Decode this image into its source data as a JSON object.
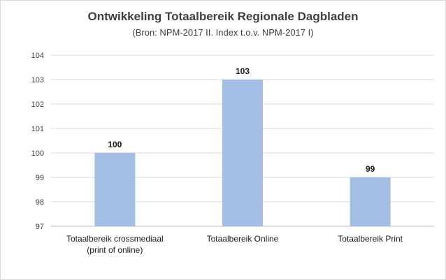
{
  "chart_data": {
    "type": "bar",
    "title": "Ontwikkeling Totaalbereik Regionale Dagbladen",
    "subtitle": "(Bron: NPM-2017 II. Index t.o.v. NPM-2017 I)",
    "categories": [
      [
        "Totaalbereik crossmediaal",
        "(print of online)"
      ],
      [
        "Totaalbereik Online"
      ],
      [
        "Totaalbereik Print"
      ]
    ],
    "values": [
      100,
      103,
      99
    ],
    "data_labels": [
      "100",
      "103",
      "99"
    ],
    "ylim": [
      97,
      104
    ],
    "yticks": [
      97,
      98,
      99,
      100,
      101,
      102,
      103,
      104
    ],
    "xlabel": "",
    "ylabel": "",
    "grid": true,
    "legend": "none",
    "bar_color": "#a4bde5"
  }
}
